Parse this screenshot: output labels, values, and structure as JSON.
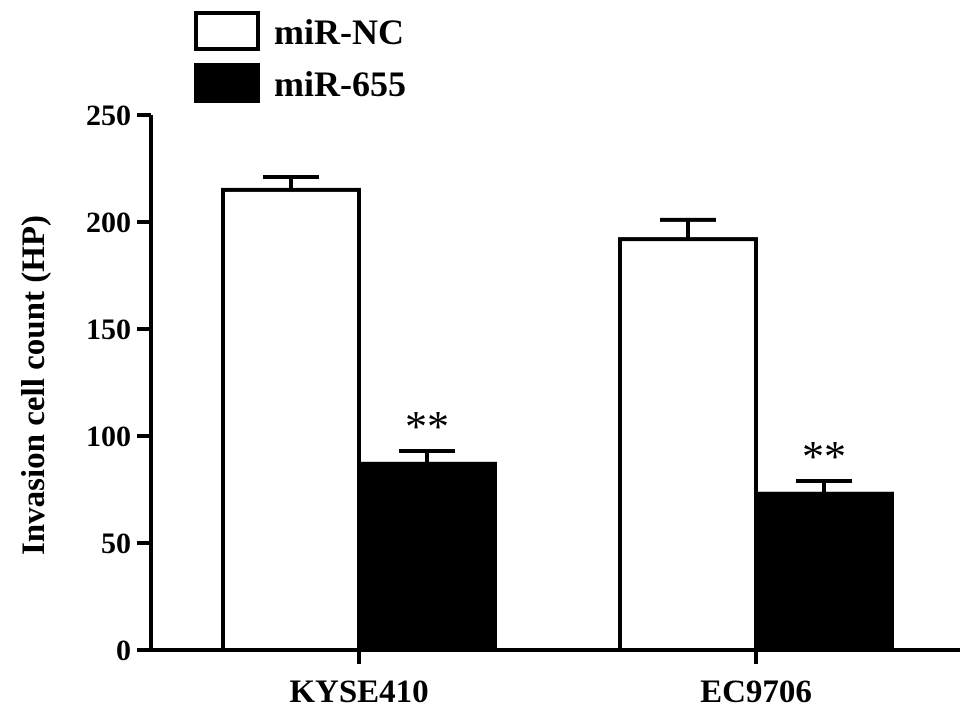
{
  "chart_data": {
    "type": "bar",
    "categories": [
      "KYSE410",
      "EC9706"
    ],
    "series": [
      {
        "name": "miR-NC",
        "values": [
          215,
          192
        ],
        "errors": [
          6,
          9
        ],
        "fill": "#ffffff",
        "annotations": [
          "",
          ""
        ]
      },
      {
        "name": "miR-655",
        "values": [
          87,
          73
        ],
        "errors": [
          6,
          6
        ],
        "fill": "#000000",
        "annotations": [
          "**",
          "**"
        ]
      }
    ],
    "xlabel": "",
    "ylabel": "Invasion cell count (HP)",
    "ylim": [
      0,
      250
    ],
    "yticks": [
      0,
      50,
      100,
      150,
      200,
      250
    ],
    "grid": false,
    "legend_position": "top-left"
  }
}
